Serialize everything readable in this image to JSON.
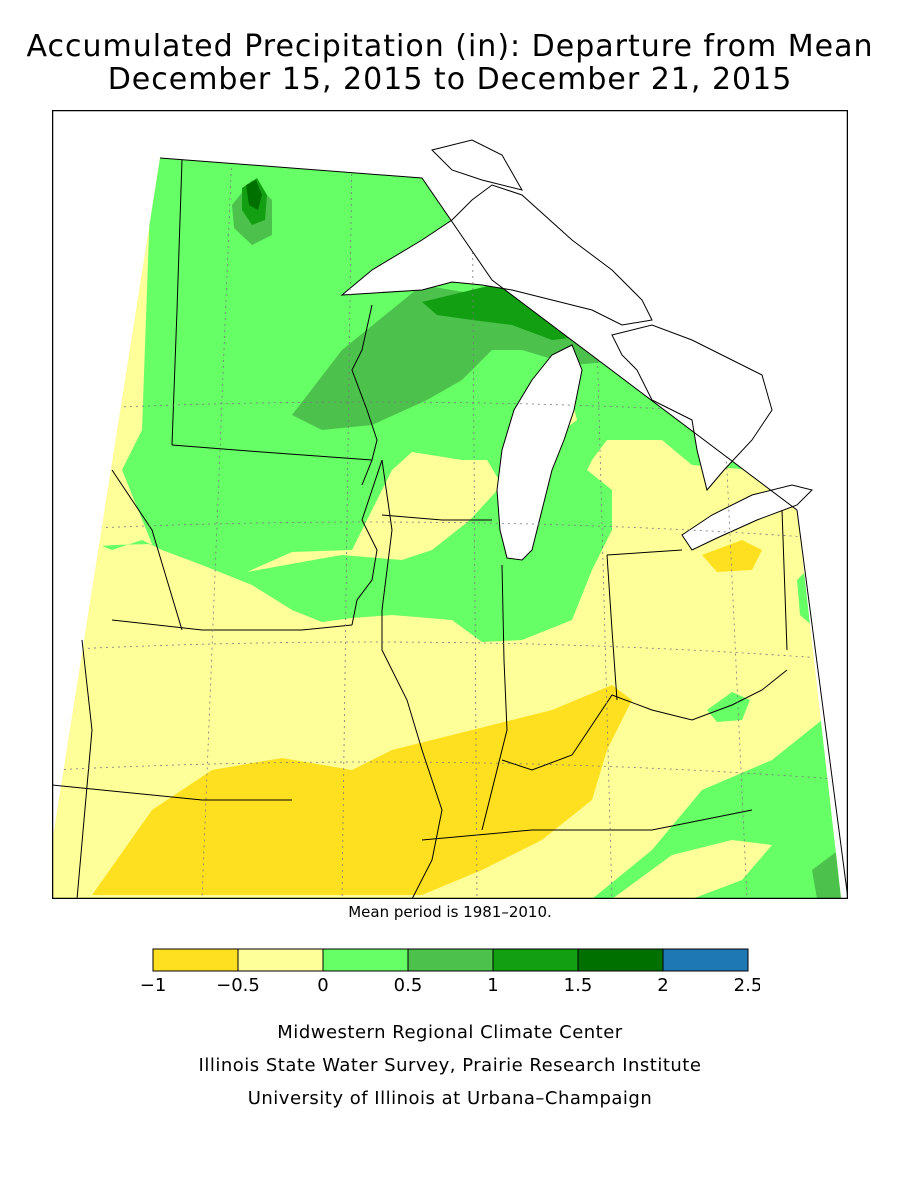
{
  "title_line1": "Accumulated Precipitation (in): Departure from Mean",
  "title_line2": "December 15, 2015 to December 21, 2015",
  "mean_period_note": "Mean period is 1981–2010.",
  "legend": {
    "ticks": [
      "−1",
      "−0.5",
      "0",
      "0.5",
      "1",
      "1.5",
      "2",
      "2.5"
    ],
    "bins": [
      {
        "from": -1,
        "to": -0.5,
        "color": "#ffe020"
      },
      {
        "from": -0.5,
        "to": 0,
        "color": "#ffff99"
      },
      {
        "from": 0,
        "to": 0.5,
        "color": "#66ff66"
      },
      {
        "from": 0.5,
        "to": 1,
        "color": "#4cc24c"
      },
      {
        "from": 1,
        "to": 1.5,
        "color": "#12a012"
      },
      {
        "from": 1.5,
        "to": 2,
        "color": "#007000"
      },
      {
        "from": 2,
        "to": 2.5,
        "color": "#1e78b4"
      }
    ]
  },
  "colors": {
    "dry_strong": "#ffe020",
    "dry": "#ffff99",
    "wet_light": "#66ff66",
    "wet_mid": "#4cc24c",
    "wet_high": "#12a012",
    "wet_max": "#007000",
    "water": "#ffffff"
  },
  "credits": [
    "Midwestern Regional Climate Center",
    "Illinois State Water Survey, Prairie Research Institute",
    "University of Illinois at Urbana–Champaign"
  ]
}
